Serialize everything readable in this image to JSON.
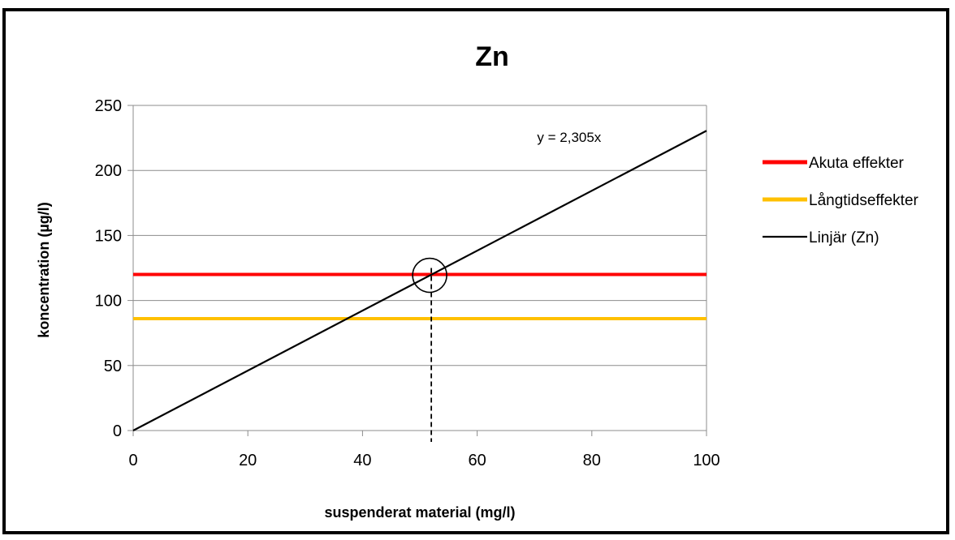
{
  "chart_data": {
    "type": "line",
    "title": "Zn",
    "xlabel": "suspenderat material (mg/l)",
    "ylabel": "koncentration (µg/l)",
    "xlim": [
      0,
      100
    ],
    "ylim": [
      0,
      250
    ],
    "xticks": [
      0,
      20,
      40,
      60,
      80,
      100
    ],
    "yticks": [
      0,
      50,
      100,
      150,
      200,
      250
    ],
    "grid": true,
    "legend_position": "right",
    "series": [
      {
        "name": "Akuta effekter",
        "color": "#ff0000",
        "x": [
          0,
          100
        ],
        "y": [
          120,
          120
        ]
      },
      {
        "name": "Långtidseffekter",
        "color": "#ffc000",
        "x": [
          0,
          100
        ],
        "y": [
          86,
          86
        ]
      },
      {
        "name": "Linjär (Zn)",
        "color": "#000000",
        "x": [
          0,
          100
        ],
        "y": [
          0,
          230.5
        ]
      }
    ],
    "annotations": [
      {
        "text": "y = 2,305x",
        "x": 90,
        "y": 227
      }
    ],
    "marker": {
      "shape": "circle",
      "x": 52,
      "y": 120,
      "dashed_drop_line": true
    }
  }
}
